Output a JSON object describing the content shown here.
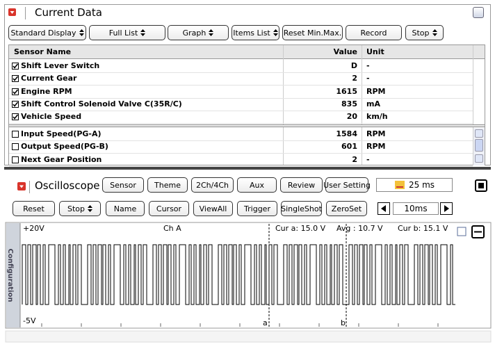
{
  "current_data": {
    "title": "Current Data",
    "toolbar": [
      {
        "label": "Standard Display",
        "dropdown": true
      },
      {
        "label": "Full List",
        "dropdown": true
      },
      {
        "label": "Graph",
        "dropdown": true
      },
      {
        "label": "Items List",
        "dropdown": true
      },
      {
        "label": "Reset Min.Max.",
        "dropdown": false
      },
      {
        "label": "Record",
        "dropdown": false
      },
      {
        "label": "Stop",
        "dropdown": true
      }
    ],
    "columns": [
      "Sensor Name",
      "Value",
      "Unit"
    ],
    "pinned_rows": [
      {
        "name": "Shift Lever Switch",
        "value": "D",
        "unit": "-",
        "checked": true
      },
      {
        "name": "Current Gear",
        "value": 2,
        "unit": "-",
        "checked": true
      },
      {
        "name": "Engine RPM",
        "value": 1615,
        "unit": "RPM",
        "checked": true
      },
      {
        "name": "Shift Control Solenoid Valve C(35R/C)",
        "value": 835,
        "unit": "mA",
        "checked": true
      },
      {
        "name": "Vehicle Speed",
        "value": 20,
        "unit": "km/h",
        "checked": true
      }
    ],
    "rows": [
      {
        "name": "Input Speed(PG-A)",
        "value": 1584,
        "unit": "RPM",
        "checked": false
      },
      {
        "name": "Output Speed(PG-B)",
        "value": 601,
        "unit": "RPM",
        "checked": false
      },
      {
        "name": "Next Gear Position",
        "value": 2,
        "unit": "-",
        "checked": false
      }
    ]
  },
  "oscilloscope": {
    "title": "Oscilloscope",
    "buttons_top": [
      "Sensor",
      "Theme",
      "2Ch/4Ch",
      "Aux",
      "Review",
      "User Setting"
    ],
    "sample_time": "25 ms",
    "buttons_bottom": [
      {
        "label": "Reset",
        "dropdown": false
      },
      {
        "label": "Stop",
        "dropdown": true
      },
      {
        "label": "Name",
        "dropdown": false
      },
      {
        "label": "Cursor",
        "dropdown": false
      },
      {
        "label": "ViewAll",
        "dropdown": false
      },
      {
        "label": "Trigger",
        "dropdown": false
      },
      {
        "label": "SingleShot",
        "dropdown": false
      },
      {
        "label": "ZeroSet",
        "dropdown": false
      }
    ],
    "time_div": "10ms",
    "side_tab": "Configuration",
    "scope": {
      "top_label": "+20V",
      "channel": "Ch A",
      "cursor_a": "Cur a: 15.0 V",
      "average": "Avg : 10.7 V",
      "cursor_b": "Cur b: 15.1 V",
      "bottom_label": "-5V",
      "marker_a": "a",
      "marker_b": "b"
    }
  }
}
